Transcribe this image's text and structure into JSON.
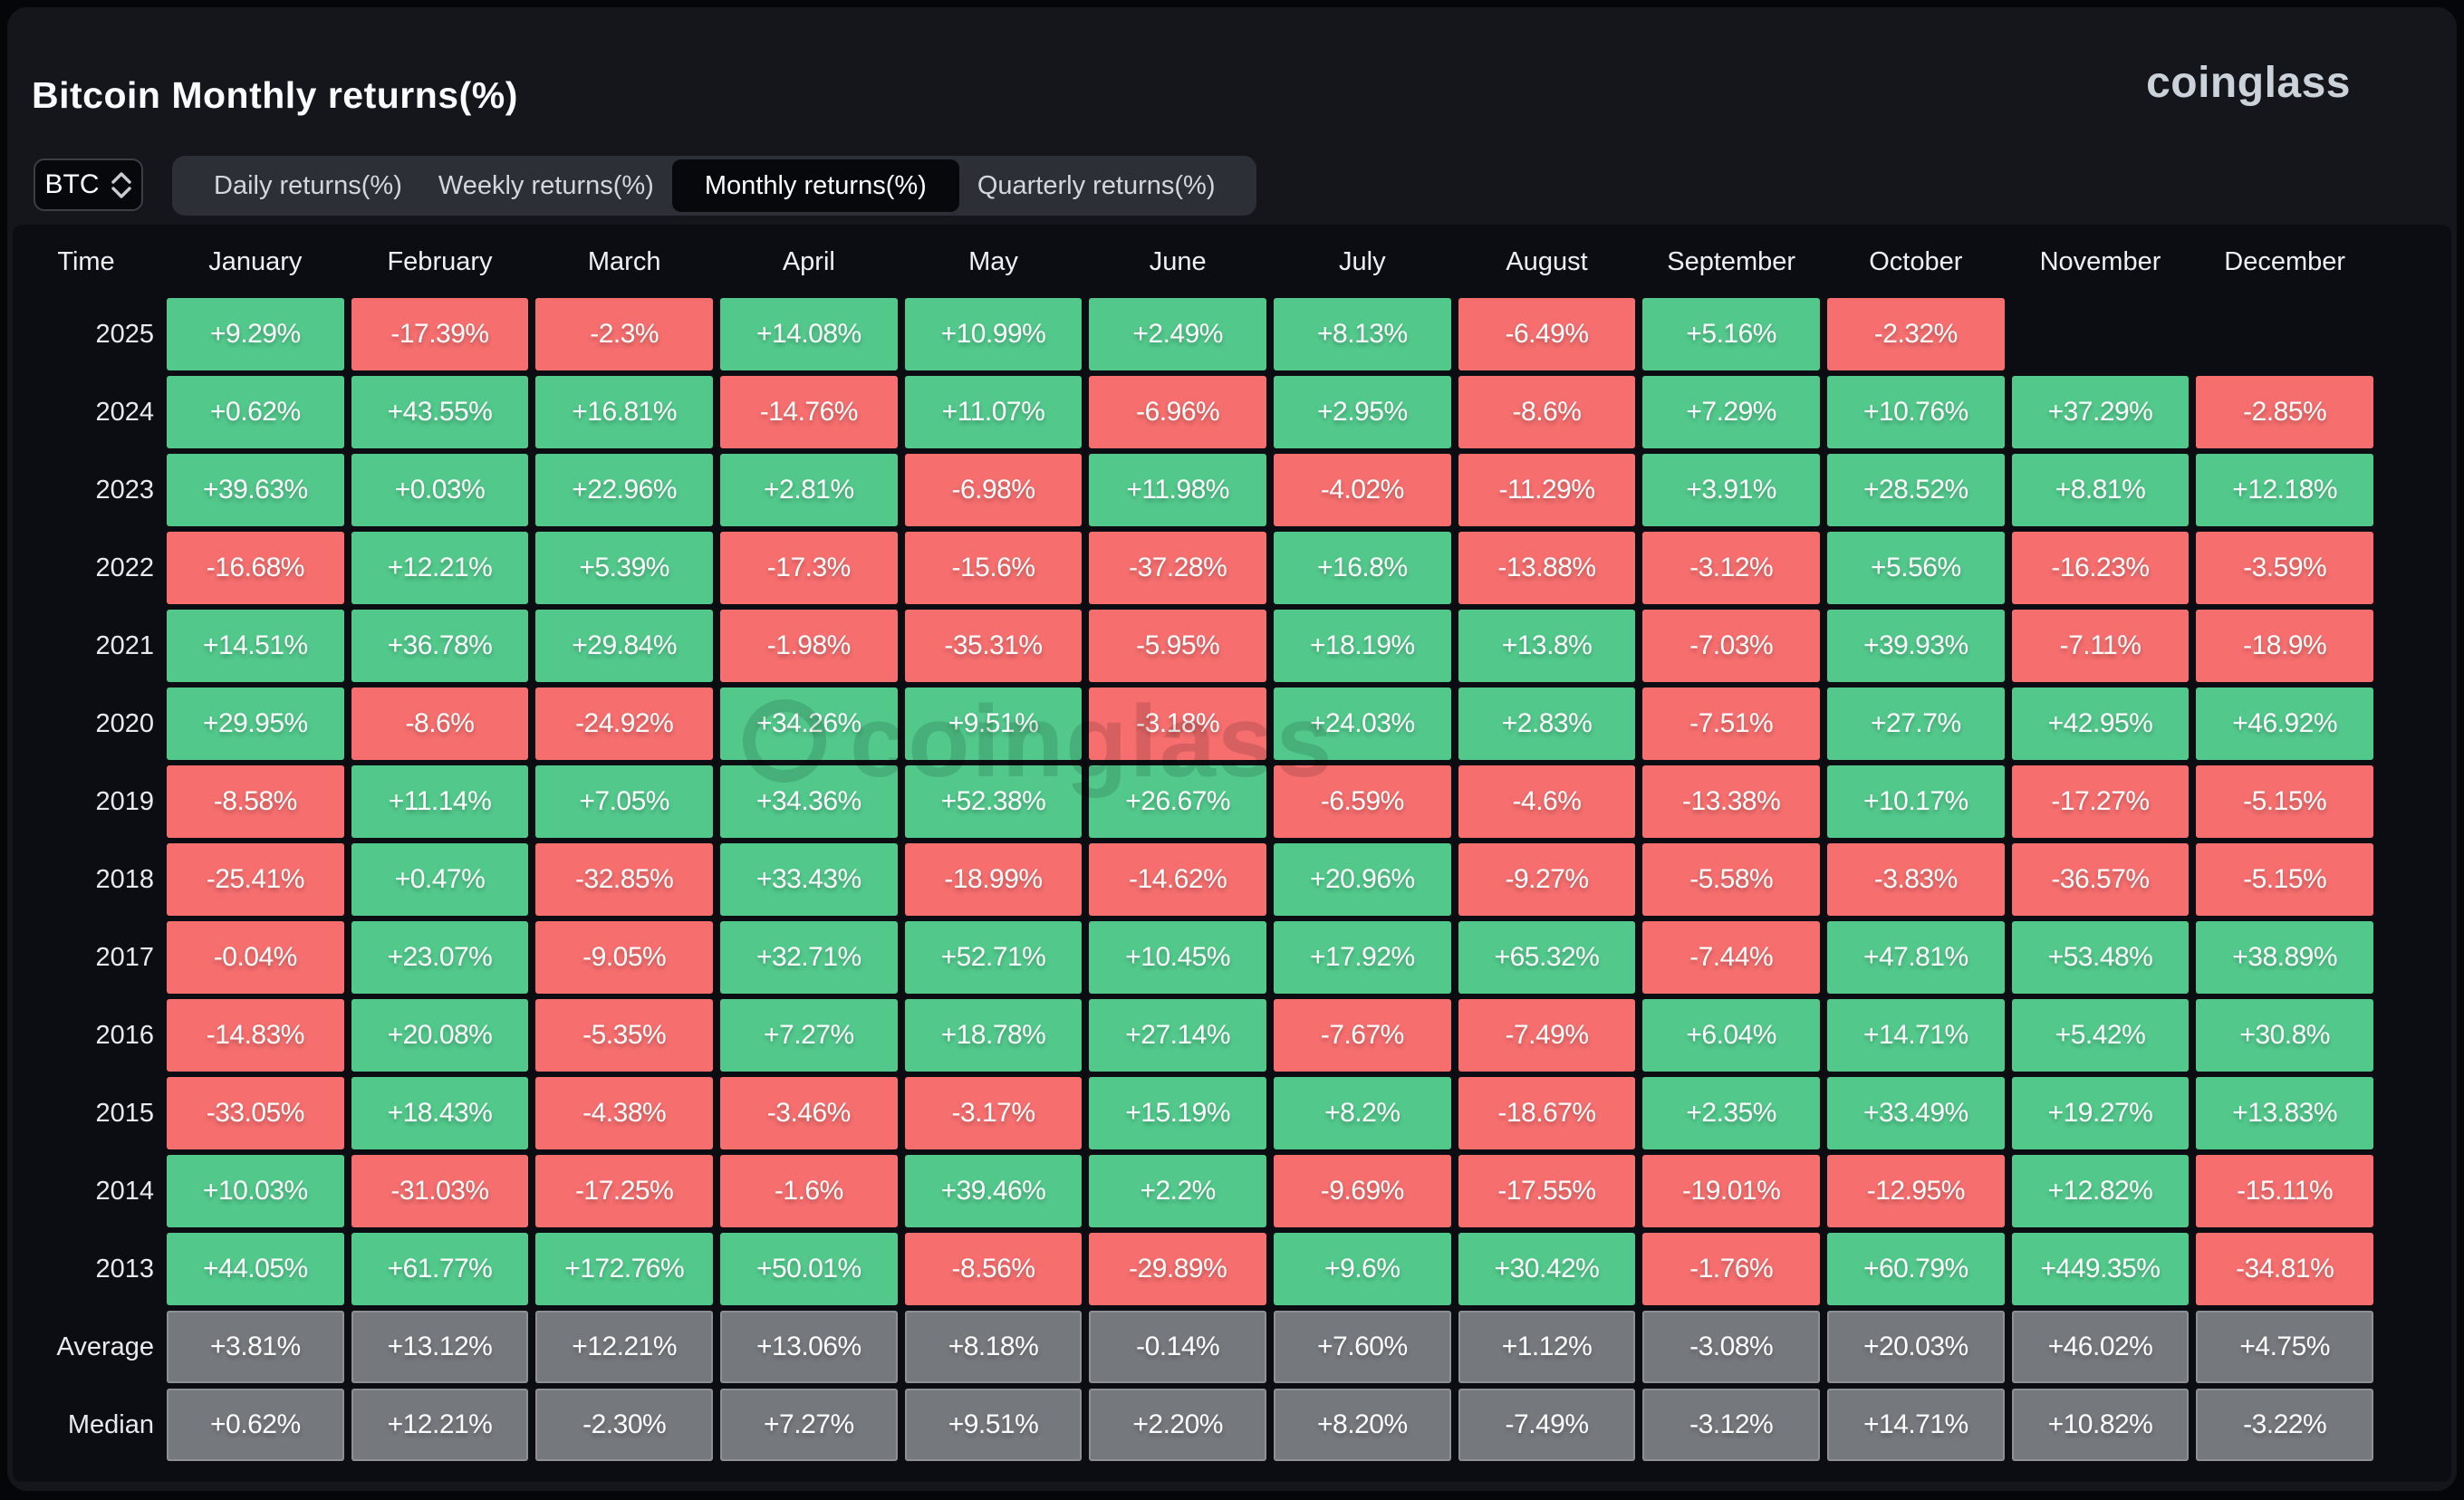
{
  "header": {
    "title": "Bitcoin Monthly returns(%)",
    "logo": "coinglass",
    "watermark": "coinglass"
  },
  "controls": {
    "coin_selector": {
      "value": "BTC"
    },
    "tabs": [
      {
        "label": "Daily returns(%)",
        "active": false
      },
      {
        "label": "Weekly returns(%)",
        "active": false
      },
      {
        "label": "Monthly returns(%)",
        "active": true
      },
      {
        "label": "Quarterly returns(%)",
        "active": false
      }
    ]
  },
  "colors": {
    "positive": "#52C98B",
    "negative": "#F66E6E",
    "summary": "#75787D"
  },
  "table": {
    "time_header": "Time",
    "months": [
      "January",
      "February",
      "March",
      "April",
      "May",
      "June",
      "July",
      "August",
      "September",
      "October",
      "November",
      "December"
    ],
    "rows": [
      {
        "label": "2025",
        "type": "year",
        "cells": [
          "+9.29%",
          "-17.39%",
          "-2.3%",
          "+14.08%",
          "+10.99%",
          "+2.49%",
          "+8.13%",
          "-6.49%",
          "+5.16%",
          "-2.32%",
          null,
          null
        ]
      },
      {
        "label": "2024",
        "type": "year",
        "cells": [
          "+0.62%",
          "+43.55%",
          "+16.81%",
          "-14.76%",
          "+11.07%",
          "-6.96%",
          "+2.95%",
          "-8.6%",
          "+7.29%",
          "+10.76%",
          "+37.29%",
          "-2.85%"
        ]
      },
      {
        "label": "2023",
        "type": "year",
        "cells": [
          "+39.63%",
          "+0.03%",
          "+22.96%",
          "+2.81%",
          "-6.98%",
          "+11.98%",
          "-4.02%",
          "-11.29%",
          "+3.91%",
          "+28.52%",
          "+8.81%",
          "+12.18%"
        ]
      },
      {
        "label": "2022",
        "type": "year",
        "cells": [
          "-16.68%",
          "+12.21%",
          "+5.39%",
          "-17.3%",
          "-15.6%",
          "-37.28%",
          "+16.8%",
          "-13.88%",
          "-3.12%",
          "+5.56%",
          "-16.23%",
          "-3.59%"
        ]
      },
      {
        "label": "2021",
        "type": "year",
        "cells": [
          "+14.51%",
          "+36.78%",
          "+29.84%",
          "-1.98%",
          "-35.31%",
          "-5.95%",
          "+18.19%",
          "+13.8%",
          "-7.03%",
          "+39.93%",
          "-7.11%",
          "-18.9%"
        ]
      },
      {
        "label": "2020",
        "type": "year",
        "cells": [
          "+29.95%",
          "-8.6%",
          "-24.92%",
          "+34.26%",
          "+9.51%",
          "-3.18%",
          "+24.03%",
          "+2.83%",
          "-7.51%",
          "+27.7%",
          "+42.95%",
          "+46.92%"
        ]
      },
      {
        "label": "2019",
        "type": "year",
        "cells": [
          "-8.58%",
          "+11.14%",
          "+7.05%",
          "+34.36%",
          "+52.38%",
          "+26.67%",
          "-6.59%",
          "-4.6%",
          "-13.38%",
          "+10.17%",
          "-17.27%",
          "-5.15%"
        ]
      },
      {
        "label": "2018",
        "type": "year",
        "cells": [
          "-25.41%",
          "+0.47%",
          "-32.85%",
          "+33.43%",
          "-18.99%",
          "-14.62%",
          "+20.96%",
          "-9.27%",
          "-5.58%",
          "-3.83%",
          "-36.57%",
          "-5.15%"
        ]
      },
      {
        "label": "2017",
        "type": "year",
        "cells": [
          "-0.04%",
          "+23.07%",
          "-9.05%",
          "+32.71%",
          "+52.71%",
          "+10.45%",
          "+17.92%",
          "+65.32%",
          "-7.44%",
          "+47.81%",
          "+53.48%",
          "+38.89%"
        ]
      },
      {
        "label": "2016",
        "type": "year",
        "cells": [
          "-14.83%",
          "+20.08%",
          "-5.35%",
          "+7.27%",
          "+18.78%",
          "+27.14%",
          "-7.67%",
          "-7.49%",
          "+6.04%",
          "+14.71%",
          "+5.42%",
          "+30.8%"
        ]
      },
      {
        "label": "2015",
        "type": "year",
        "cells": [
          "-33.05%",
          "+18.43%",
          "-4.38%",
          "-3.46%",
          "-3.17%",
          "+15.19%",
          "+8.2%",
          "-18.67%",
          "+2.35%",
          "+33.49%",
          "+19.27%",
          "+13.83%"
        ]
      },
      {
        "label": "2014",
        "type": "year",
        "cells": [
          "+10.03%",
          "-31.03%",
          "-17.25%",
          "-1.6%",
          "+39.46%",
          "+2.2%",
          "-9.69%",
          "-17.55%",
          "-19.01%",
          "-12.95%",
          "+12.82%",
          "-15.11%"
        ]
      },
      {
        "label": "2013",
        "type": "year",
        "cells": [
          "+44.05%",
          "+61.77%",
          "+172.76%",
          "+50.01%",
          "-8.56%",
          "-29.89%",
          "+9.6%",
          "+30.42%",
          "-1.76%",
          "+60.79%",
          "+449.35%",
          "-34.81%"
        ]
      },
      {
        "label": "Average",
        "type": "summary",
        "cells": [
          "+3.81%",
          "+13.12%",
          "+12.21%",
          "+13.06%",
          "+8.18%",
          "-0.14%",
          "+7.60%",
          "+1.12%",
          "-3.08%",
          "+20.03%",
          "+46.02%",
          "+4.75%"
        ]
      },
      {
        "label": "Median",
        "type": "summary",
        "cells": [
          "+0.62%",
          "+12.21%",
          "-2.30%",
          "+7.27%",
          "+9.51%",
          "+2.20%",
          "+8.20%",
          "-7.49%",
          "-3.12%",
          "+14.71%",
          "+10.82%",
          "-3.22%"
        ]
      }
    ]
  },
  "chart_data": {
    "type": "heatmap",
    "title": "Bitcoin Monthly returns(%)",
    "columns": [
      "January",
      "February",
      "March",
      "April",
      "May",
      "June",
      "July",
      "August",
      "September",
      "October",
      "November",
      "December"
    ],
    "rows": [
      "2025",
      "2024",
      "2023",
      "2022",
      "2021",
      "2020",
      "2019",
      "2018",
      "2017",
      "2016",
      "2015",
      "2014",
      "2013",
      "Average",
      "Median"
    ],
    "values": [
      [
        9.29,
        -17.39,
        -2.3,
        14.08,
        10.99,
        2.49,
        8.13,
        -6.49,
        5.16,
        -2.32,
        null,
        null
      ],
      [
        0.62,
        43.55,
        16.81,
        -14.76,
        11.07,
        -6.96,
        2.95,
        -8.6,
        7.29,
        10.76,
        37.29,
        -2.85
      ],
      [
        39.63,
        0.03,
        22.96,
        2.81,
        -6.98,
        11.98,
        -4.02,
        -11.29,
        3.91,
        28.52,
        8.81,
        12.18
      ],
      [
        -16.68,
        12.21,
        5.39,
        -17.3,
        -15.6,
        -37.28,
        16.8,
        -13.88,
        -3.12,
        5.56,
        -16.23,
        -3.59
      ],
      [
        14.51,
        36.78,
        29.84,
        -1.98,
        -35.31,
        -5.95,
        18.19,
        13.8,
        -7.03,
        39.93,
        -7.11,
        -18.9
      ],
      [
        29.95,
        -8.6,
        -24.92,
        34.26,
        9.51,
        -3.18,
        24.03,
        2.83,
        -7.51,
        27.7,
        42.95,
        46.92
      ],
      [
        -8.58,
        11.14,
        7.05,
        34.36,
        52.38,
        26.67,
        -6.59,
        -4.6,
        -13.38,
        10.17,
        -17.27,
        -5.15
      ],
      [
        -25.41,
        0.47,
        -32.85,
        33.43,
        -18.99,
        -14.62,
        20.96,
        -9.27,
        -5.58,
        -3.83,
        -36.57,
        -5.15
      ],
      [
        -0.04,
        23.07,
        -9.05,
        32.71,
        52.71,
        10.45,
        17.92,
        65.32,
        -7.44,
        47.81,
        53.48,
        38.89
      ],
      [
        -14.83,
        20.08,
        -5.35,
        7.27,
        18.78,
        27.14,
        -7.67,
        -7.49,
        6.04,
        14.71,
        5.42,
        30.8
      ],
      [
        -33.05,
        18.43,
        -4.38,
        -3.46,
        -3.17,
        15.19,
        8.2,
        -18.67,
        2.35,
        33.49,
        19.27,
        13.83
      ],
      [
        10.03,
        -31.03,
        -17.25,
        -1.6,
        39.46,
        2.2,
        -9.69,
        -17.55,
        -19.01,
        -12.95,
        12.82,
        -15.11
      ],
      [
        44.05,
        61.77,
        172.76,
        50.01,
        -8.56,
        -29.89,
        9.6,
        30.42,
        -1.76,
        60.79,
        449.35,
        -34.81
      ],
      [
        3.81,
        13.12,
        12.21,
        13.06,
        8.18,
        -0.14,
        7.6,
        1.12,
        -3.08,
        20.03,
        46.02,
        4.75
      ],
      [
        0.62,
        12.21,
        -2.3,
        7.27,
        9.51,
        2.2,
        8.2,
        -7.49,
        -3.12,
        14.71,
        10.82,
        -3.22
      ]
    ]
  }
}
